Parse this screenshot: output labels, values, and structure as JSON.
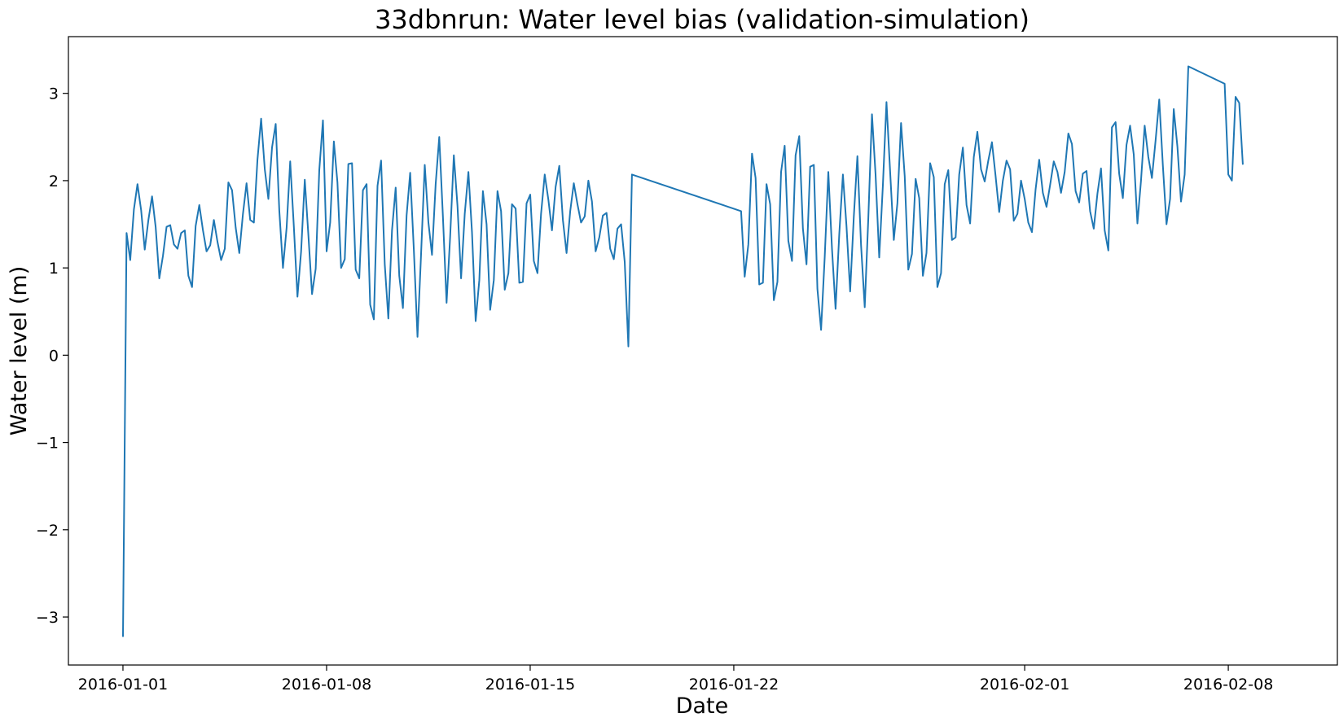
{
  "chart_data": {
    "type": "line",
    "title": "33dbnrun: Water level bias (validation-simulation)",
    "xlabel": "Date",
    "ylabel": "Water level (m)",
    "x_type": "date",
    "xlim": [
      "2015-12-30T03:00",
      "2016-02-11T18:00"
    ],
    "ylim": [
      -3.55,
      3.65
    ],
    "x_ticks": [
      "2016-01-01",
      "2016-01-08",
      "2016-01-15",
      "2016-01-22",
      "2016-02-01",
      "2016-02-08"
    ],
    "y_ticks": [
      -3,
      -2,
      -1,
      0,
      1,
      2,
      3
    ],
    "y_tick_labels": [
      "−3",
      "−2",
      "−1",
      "0",
      "1",
      "2",
      "3"
    ],
    "grid": false,
    "legend": "none",
    "series": [
      {
        "color": "#1f77b4",
        "x": [
          "2016-01-01T00:00",
          "2016-01-01T03:00",
          "2016-01-01T06:00",
          "2016-01-01T09:00",
          "2016-01-01T12:00",
          "2016-01-01T15:00",
          "2016-01-01T18:00",
          "2016-01-01T21:00",
          "2016-01-02T00:00",
          "2016-01-02T03:00",
          "2016-01-02T06:00",
          "2016-01-02T09:00",
          "2016-01-02T12:00",
          "2016-01-02T15:00",
          "2016-01-02T18:00",
          "2016-01-02T21:00",
          "2016-01-03T00:00",
          "2016-01-03T03:00",
          "2016-01-03T06:00",
          "2016-01-03T09:00",
          "2016-01-03T12:00",
          "2016-01-03T15:00",
          "2016-01-03T18:00",
          "2016-01-03T21:00",
          "2016-01-04T00:00",
          "2016-01-04T03:00",
          "2016-01-04T06:00",
          "2016-01-04T09:00",
          "2016-01-04T12:00",
          "2016-01-04T15:00",
          "2016-01-04T18:00",
          "2016-01-04T21:00",
          "2016-01-05T00:00",
          "2016-01-05T03:00",
          "2016-01-05T06:00",
          "2016-01-05T09:00",
          "2016-01-05T12:00",
          "2016-01-05T15:00",
          "2016-01-05T18:00",
          "2016-01-05T21:00",
          "2016-01-06T00:00",
          "2016-01-06T03:00",
          "2016-01-06T06:00",
          "2016-01-06T09:00",
          "2016-01-06T12:00",
          "2016-01-06T15:00",
          "2016-01-06T18:00",
          "2016-01-06T21:00",
          "2016-01-07T00:00",
          "2016-01-07T03:00",
          "2016-01-07T06:00",
          "2016-01-07T09:00",
          "2016-01-07T12:00",
          "2016-01-07T15:00",
          "2016-01-07T18:00",
          "2016-01-07T21:00",
          "2016-01-08T00:00",
          "2016-01-08T03:00",
          "2016-01-08T06:00",
          "2016-01-08T09:00",
          "2016-01-08T12:00",
          "2016-01-08T15:00",
          "2016-01-08T18:00",
          "2016-01-08T21:00",
          "2016-01-09T00:00",
          "2016-01-09T03:00",
          "2016-01-09T06:00",
          "2016-01-09T09:00",
          "2016-01-09T12:00",
          "2016-01-09T15:00",
          "2016-01-09T18:00",
          "2016-01-09T21:00",
          "2016-01-10T00:00",
          "2016-01-10T03:00",
          "2016-01-10T06:00",
          "2016-01-10T09:00",
          "2016-01-10T12:00",
          "2016-01-10T15:00",
          "2016-01-10T18:00",
          "2016-01-10T21:00",
          "2016-01-11T00:00",
          "2016-01-11T03:00",
          "2016-01-11T06:00",
          "2016-01-11T09:00",
          "2016-01-11T12:00",
          "2016-01-11T15:00",
          "2016-01-11T18:00",
          "2016-01-11T21:00",
          "2016-01-12T00:00",
          "2016-01-12T03:00",
          "2016-01-12T06:00",
          "2016-01-12T09:00",
          "2016-01-12T12:00",
          "2016-01-12T15:00",
          "2016-01-12T18:00",
          "2016-01-12T21:00",
          "2016-01-13T00:00",
          "2016-01-13T03:00",
          "2016-01-13T06:00",
          "2016-01-13T09:00",
          "2016-01-13T12:00",
          "2016-01-13T15:00",
          "2016-01-13T18:00",
          "2016-01-13T21:00",
          "2016-01-14T00:00",
          "2016-01-14T03:00",
          "2016-01-14T06:00",
          "2016-01-14T09:00",
          "2016-01-14T12:00",
          "2016-01-14T15:00",
          "2016-01-14T18:00",
          "2016-01-14T21:00",
          "2016-01-15T00:00",
          "2016-01-15T03:00",
          "2016-01-15T06:00",
          "2016-01-15T09:00",
          "2016-01-15T12:00",
          "2016-01-15T15:00",
          "2016-01-15T18:00",
          "2016-01-15T21:00",
          "2016-01-16T00:00",
          "2016-01-16T03:00",
          "2016-01-16T06:00",
          "2016-01-16T09:00",
          "2016-01-16T12:00",
          "2016-01-16T15:00",
          "2016-01-16T18:00",
          "2016-01-16T21:00",
          "2016-01-17T00:00",
          "2016-01-17T03:00",
          "2016-01-17T06:00",
          "2016-01-17T09:00",
          "2016-01-17T12:00",
          "2016-01-17T15:00",
          "2016-01-17T18:00",
          "2016-01-17T21:00",
          "2016-01-18T00:00",
          "2016-01-18T03:00",
          "2016-01-18T06:00",
          "2016-01-18T09:00",
          "2016-01-18T12:00",
          "2016-01-22T06:00",
          "2016-01-22T09:00",
          "2016-01-22T12:00",
          "2016-01-22T15:00",
          "2016-01-22T18:00",
          "2016-01-22T21:00",
          "2016-01-23T00:00",
          "2016-01-23T03:00",
          "2016-01-23T06:00",
          "2016-01-23T09:00",
          "2016-01-23T12:00",
          "2016-01-23T15:00",
          "2016-01-23T18:00",
          "2016-01-23T21:00",
          "2016-01-24T00:00",
          "2016-01-24T03:00",
          "2016-01-24T06:00",
          "2016-01-24T09:00",
          "2016-01-24T12:00",
          "2016-01-24T15:00",
          "2016-01-24T18:00",
          "2016-01-24T21:00",
          "2016-01-25T00:00",
          "2016-01-25T03:00",
          "2016-01-25T06:00",
          "2016-01-25T09:00",
          "2016-01-25T12:00",
          "2016-01-25T15:00",
          "2016-01-25T18:00",
          "2016-01-25T21:00",
          "2016-01-26T00:00",
          "2016-01-26T03:00",
          "2016-01-26T06:00",
          "2016-01-26T09:00",
          "2016-01-26T12:00",
          "2016-01-26T15:00",
          "2016-01-26T18:00",
          "2016-01-26T21:00",
          "2016-01-27T00:00",
          "2016-01-27T03:00",
          "2016-01-27T06:00",
          "2016-01-27T09:00",
          "2016-01-27T12:00",
          "2016-01-27T15:00",
          "2016-01-27T18:00",
          "2016-01-27T21:00",
          "2016-01-28T00:00",
          "2016-01-28T03:00",
          "2016-01-28T06:00",
          "2016-01-28T09:00",
          "2016-01-28T12:00",
          "2016-01-28T15:00",
          "2016-01-28T18:00",
          "2016-01-28T21:00",
          "2016-01-29T00:00",
          "2016-01-29T03:00",
          "2016-01-29T06:00",
          "2016-01-29T09:00",
          "2016-01-29T12:00",
          "2016-01-29T15:00",
          "2016-01-29T18:00",
          "2016-01-29T21:00",
          "2016-01-30T00:00",
          "2016-01-30T03:00",
          "2016-01-30T06:00",
          "2016-01-30T09:00",
          "2016-01-30T12:00",
          "2016-01-30T15:00",
          "2016-01-30T18:00",
          "2016-01-30T21:00",
          "2016-01-31T00:00",
          "2016-01-31T03:00",
          "2016-01-31T06:00",
          "2016-01-31T09:00",
          "2016-01-31T12:00",
          "2016-01-31T15:00",
          "2016-01-31T18:00",
          "2016-01-31T21:00",
          "2016-02-01T00:00",
          "2016-02-01T03:00",
          "2016-02-01T06:00",
          "2016-02-01T09:00",
          "2016-02-01T12:00",
          "2016-02-01T15:00",
          "2016-02-01T18:00",
          "2016-02-01T21:00",
          "2016-02-02T00:00",
          "2016-02-02T03:00",
          "2016-02-02T06:00",
          "2016-02-02T09:00",
          "2016-02-02T12:00",
          "2016-02-02T15:00",
          "2016-02-02T18:00",
          "2016-02-02T21:00",
          "2016-02-03T00:00",
          "2016-02-03T03:00",
          "2016-02-03T06:00",
          "2016-02-03T09:00",
          "2016-02-03T12:00",
          "2016-02-03T15:00",
          "2016-02-03T18:00",
          "2016-02-03T21:00",
          "2016-02-04T00:00",
          "2016-02-04T03:00",
          "2016-02-04T06:00",
          "2016-02-04T09:00",
          "2016-02-04T12:00",
          "2016-02-04T15:00",
          "2016-02-04T18:00",
          "2016-02-04T21:00",
          "2016-02-05T00:00",
          "2016-02-05T03:00",
          "2016-02-05T06:00",
          "2016-02-05T09:00",
          "2016-02-05T12:00",
          "2016-02-05T15:00",
          "2016-02-05T18:00",
          "2016-02-05T21:00",
          "2016-02-06T00:00",
          "2016-02-06T03:00",
          "2016-02-06T06:00",
          "2016-02-06T09:00",
          "2016-02-06T12:00",
          "2016-02-06T15:00",
          "2016-02-07T21:00",
          "2016-02-08T00:00",
          "2016-02-08T03:00",
          "2016-02-08T06:00",
          "2016-02-08T09:00",
          "2016-02-08T12:00"
        ],
        "values": [
          -3.22,
          1.4,
          1.09,
          1.67,
          1.96,
          1.66,
          1.21,
          1.55,
          1.82,
          1.47,
          0.88,
          1.14,
          1.47,
          1.49,
          1.27,
          1.22,
          1.4,
          1.43,
          0.91,
          0.78,
          1.48,
          1.72,
          1.43,
          1.19,
          1.26,
          1.55,
          1.3,
          1.09,
          1.22,
          1.98,
          1.89,
          1.46,
          1.17,
          1.62,
          1.97,
          1.55,
          1.52,
          2.24,
          2.71,
          2.13,
          1.79,
          2.38,
          2.65,
          1.66,
          1.0,
          1.46,
          2.22,
          1.47,
          0.67,
          1.19,
          2.01,
          1.38,
          0.7,
          0.99,
          2.12,
          2.69,
          1.19,
          1.52,
          2.45,
          1.98,
          1.0,
          1.1,
          2.19,
          2.2,
          0.98,
          0.88,
          1.89,
          1.96,
          0.58,
          0.41,
          1.94,
          2.23,
          1.04,
          0.42,
          1.43,
          1.92,
          0.91,
          0.54,
          1.6,
          2.09,
          1.21,
          0.21,
          1.16,
          2.18,
          1.52,
          1.15,
          1.96,
          2.5,
          1.59,
          0.6,
          1.36,
          2.29,
          1.71,
          0.88,
          1.62,
          2.1,
          1.41,
          0.39,
          0.86,
          1.88,
          1.5,
          0.52,
          0.86,
          1.88,
          1.65,
          0.75,
          0.94,
          1.73,
          1.68,
          0.83,
          0.84,
          1.74,
          1.84,
          1.08,
          0.94,
          1.62,
          2.07,
          1.78,
          1.43,
          1.93,
          2.17,
          1.55,
          1.17,
          1.65,
          1.97,
          1.73,
          1.52,
          1.59,
          2.0,
          1.76,
          1.19,
          1.35,
          1.6,
          1.63,
          1.22,
          1.1,
          1.45,
          1.5,
          1.07,
          0.1,
          2.07,
          1.65,
          0.9,
          1.27,
          2.31,
          2.03,
          0.81,
          0.83,
          1.96,
          1.73,
          0.63,
          0.84,
          2.1,
          2.4,
          1.31,
          1.08,
          2.29,
          2.51,
          1.45,
          1.04,
          2.16,
          2.18,
          0.76,
          0.29,
          1.13,
          2.1,
          1.22,
          0.53,
          1.38,
          2.07,
          1.48,
          0.73,
          1.59,
          2.28,
          1.26,
          0.55,
          1.57,
          2.76,
          2.07,
          1.12,
          1.95,
          2.9,
          2.1,
          1.32,
          1.74,
          2.66,
          2.05,
          0.98,
          1.16,
          2.02,
          1.8,
          0.91,
          1.17,
          2.2,
          2.04,
          0.78,
          0.94,
          1.96,
          2.12,
          1.32,
          1.35,
          2.07,
          2.38,
          1.72,
          1.51,
          2.27,
          2.56,
          2.13,
          1.99,
          2.23,
          2.44,
          2.05,
          1.64,
          2.0,
          2.23,
          2.13,
          1.54,
          1.62,
          2.0,
          1.79,
          1.52,
          1.41,
          1.9,
          2.24,
          1.86,
          1.7,
          1.95,
          2.22,
          2.1,
          1.86,
          2.1,
          2.54,
          2.42,
          1.88,
          1.75,
          2.08,
          2.11,
          1.65,
          1.45,
          1.85,
          2.14,
          1.43,
          1.2,
          2.61,
          2.67,
          2.08,
          1.8,
          2.41,
          2.63,
          2.3,
          1.51,
          2.0,
          2.63,
          2.27,
          2.03,
          2.46,
          2.93,
          2.18,
          1.5,
          1.79,
          2.82,
          2.39,
          1.76,
          2.07,
          3.31,
          3.11,
          2.07,
          2.0,
          2.96,
          2.89,
          2.19
        ]
      }
    ]
  }
}
